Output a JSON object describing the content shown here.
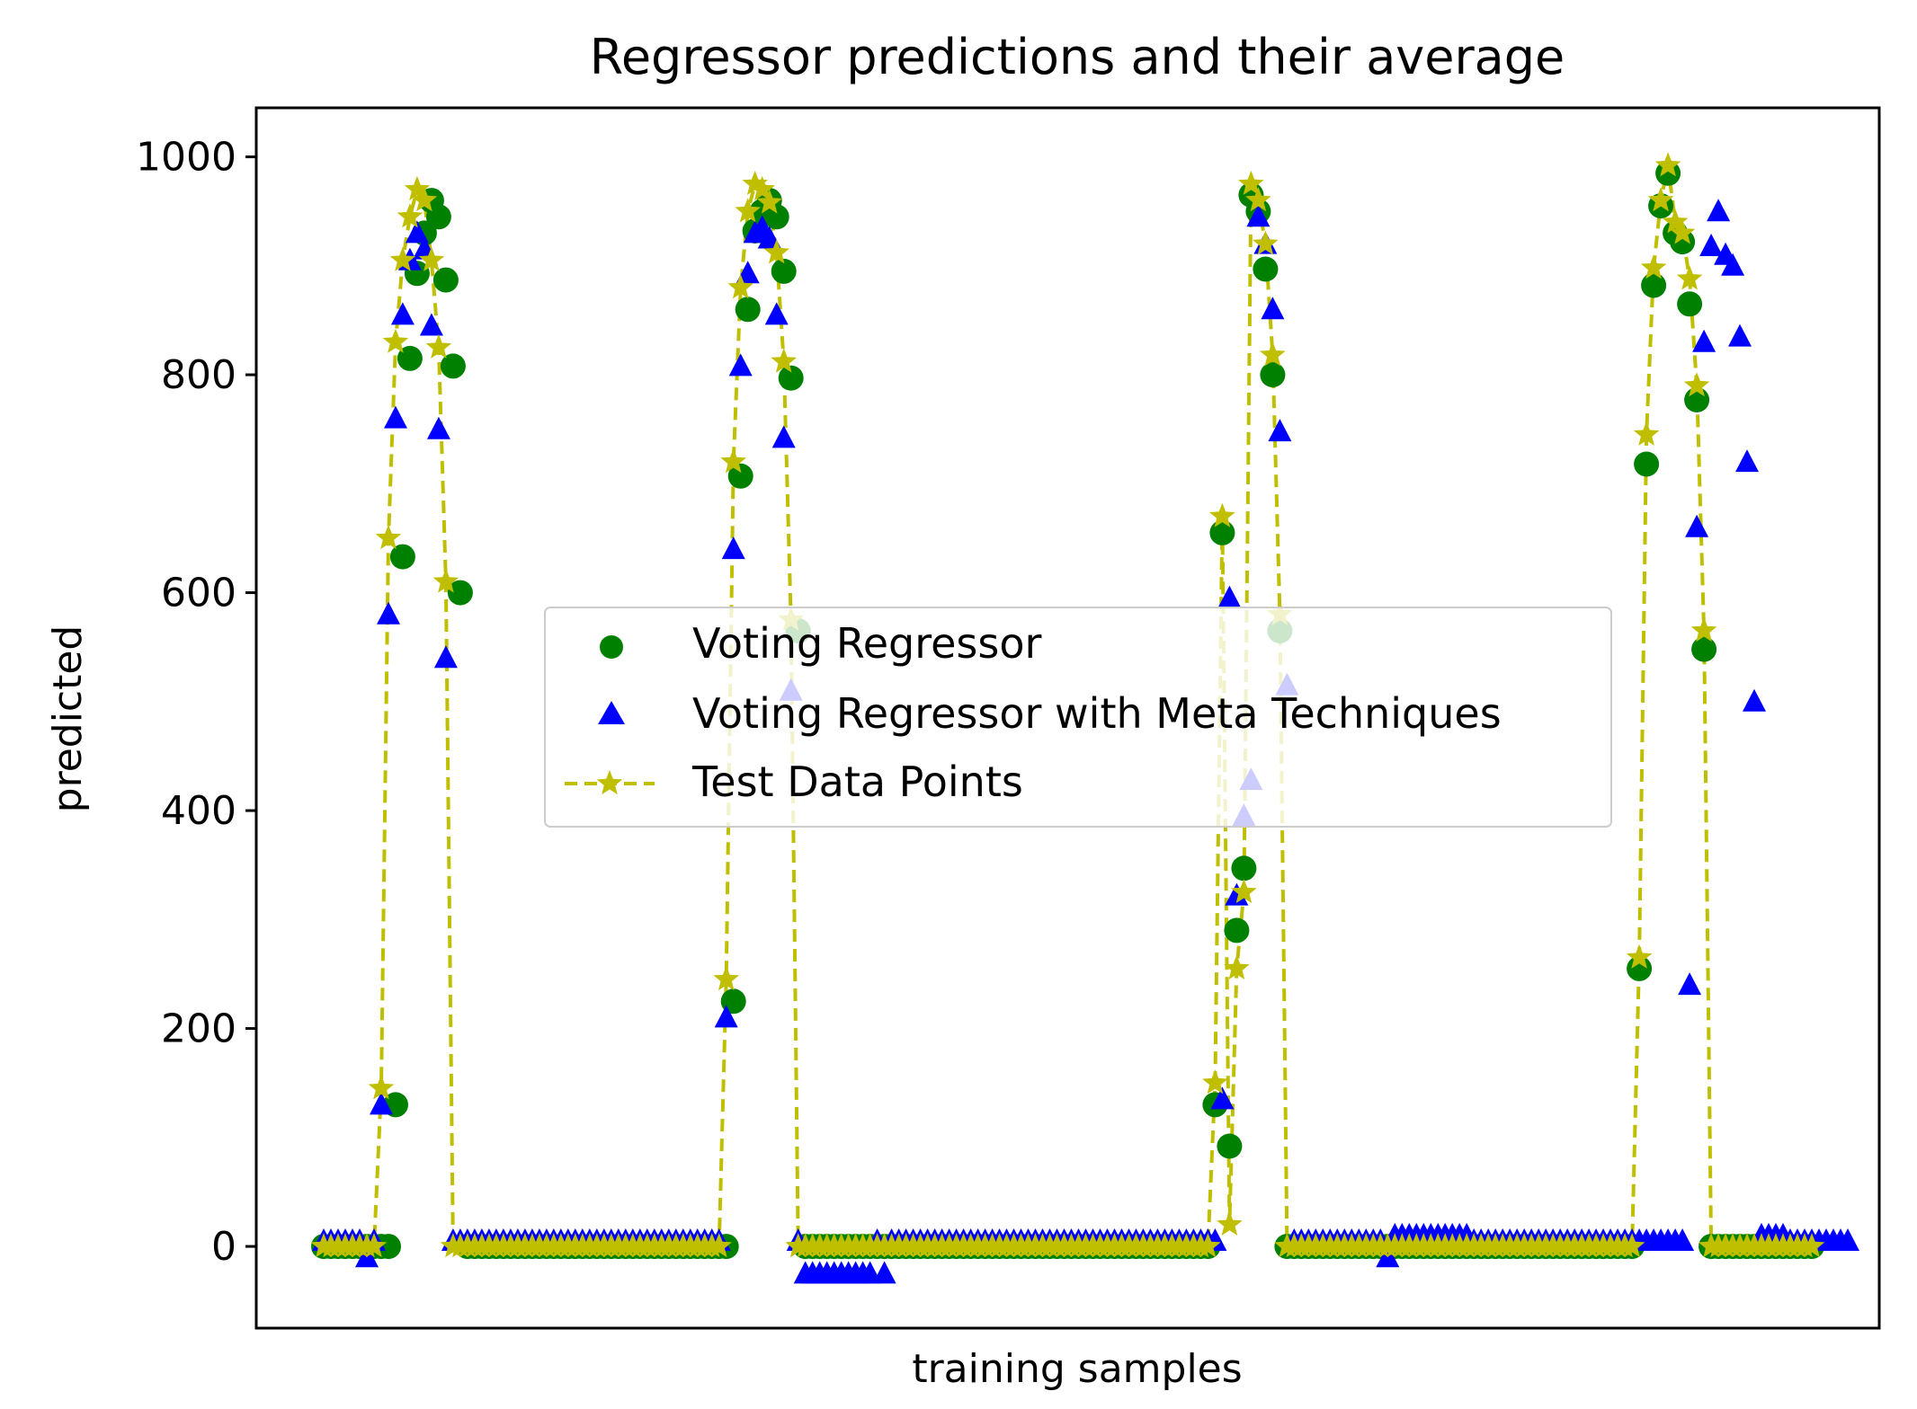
{
  "chart_data": {
    "type": "scatter",
    "title": "Regressor predictions and their average",
    "xlabel": "training samples",
    "ylabel": "predicted",
    "ylim": [
      -75,
      1045
    ],
    "yticks": [
      0,
      200,
      400,
      600,
      800,
      1000
    ],
    "xticks_shown": false,
    "legend_position": "center",
    "series": [
      {
        "name": "Voting Regressor",
        "marker": "circle",
        "color": "#008000",
        "values": [
          0,
          0,
          0,
          0,
          0,
          0,
          0,
          0,
          0,
          0,
          130,
          633,
          815,
          893,
          930,
          960,
          945,
          887,
          808,
          600,
          0,
          0,
          0,
          0,
          0,
          0,
          0,
          0,
          0,
          0,
          0,
          0,
          0,
          0,
          0,
          0,
          0,
          0,
          0,
          0,
          0,
          0,
          0,
          0,
          0,
          0,
          0,
          0,
          0,
          0,
          0,
          0,
          0,
          0,
          0,
          0,
          0,
          225,
          707,
          860,
          932,
          950,
          960,
          945,
          895,
          797,
          565,
          0,
          0,
          0,
          0,
          0,
          0,
          0,
          0,
          0,
          0,
          0,
          0,
          0,
          0,
          0,
          0,
          0,
          0,
          0,
          0,
          0,
          0,
          0,
          0,
          0,
          0,
          0,
          0,
          0,
          0,
          0,
          0,
          0,
          0,
          0,
          0,
          0,
          0,
          0,
          0,
          0,
          0,
          0,
          0,
          0,
          0,
          0,
          0,
          0,
          0,
          0,
          0,
          0,
          0,
          0,
          0,
          0,
          130,
          655,
          92,
          290,
          347,
          965,
          950,
          897,
          800,
          565,
          0,
          0,
          0,
          0,
          0,
          0,
          0,
          0,
          0,
          0,
          0,
          0,
          0,
          0,
          0,
          0,
          0,
          0,
          0,
          0,
          0,
          0,
          0,
          0,
          0,
          0,
          0,
          0,
          0,
          0,
          0,
          0,
          0,
          0,
          0,
          0,
          0,
          0,
          0,
          0,
          0,
          0,
          0,
          0,
          0,
          0,
          0,
          0,
          0,
          255,
          718,
          882,
          955,
          985,
          930,
          922,
          865,
          777,
          548,
          0,
          0,
          0,
          0,
          0,
          0,
          0,
          0,
          0,
          0,
          0,
          0,
          0,
          0,
          0
        ]
      },
      {
        "name": "Voting Regressor with Meta Techniques",
        "marker": "triangle",
        "color": "#0000ff",
        "values": [
          5,
          5,
          5,
          5,
          5,
          5,
          -10,
          5,
          130,
          580,
          760,
          855,
          905,
          930,
          915,
          845,
          750,
          540,
          5,
          5,
          5,
          5,
          5,
          5,
          5,
          5,
          5,
          5,
          5,
          5,
          5,
          5,
          5,
          5,
          5,
          5,
          5,
          5,
          5,
          5,
          5,
          5,
          5,
          5,
          5,
          5,
          5,
          5,
          5,
          5,
          5,
          5,
          5,
          5,
          5,
          5,
          210,
          640,
          808,
          893,
          930,
          935,
          925,
          855,
          742,
          510,
          5,
          -25,
          -25,
          -25,
          -25,
          -25,
          -25,
          -25,
          -25,
          -25,
          -25,
          5,
          -25,
          5,
          5,
          5,
          5,
          5,
          5,
          5,
          5,
          5,
          5,
          5,
          5,
          5,
          5,
          5,
          5,
          5,
          5,
          5,
          5,
          5,
          5,
          5,
          5,
          5,
          5,
          5,
          5,
          5,
          5,
          5,
          5,
          5,
          5,
          5,
          5,
          5,
          5,
          5,
          5,
          5,
          5,
          5,
          5,
          5,
          5,
          135,
          595,
          322,
          395,
          428,
          945,
          920,
          860,
          748,
          515,
          5,
          5,
          5,
          5,
          5,
          5,
          5,
          5,
          5,
          5,
          5,
          5,
          5,
          -10,
          10,
          10,
          10,
          10,
          10,
          10,
          10,
          10,
          10,
          10,
          10,
          5,
          5,
          5,
          5,
          5,
          5,
          5,
          5,
          5,
          5,
          5,
          5,
          5,
          5,
          5,
          5,
          5,
          5,
          5,
          5,
          5,
          5,
          5,
          5,
          5,
          5,
          5,
          5,
          5,
          5,
          240,
          660,
          830,
          918,
          950,
          910,
          900,
          835,
          720,
          500,
          10,
          10,
          10,
          10,
          5,
          5,
          5,
          5,
          5,
          5,
          5,
          5,
          5
        ]
      },
      {
        "name": "Test Data Points",
        "marker": "star",
        "style": "dashed-line",
        "color": "#bfbf00",
        "values": [
          0,
          0,
          0,
          0,
          0,
          0,
          0,
          0,
          145,
          650,
          830,
          905,
          945,
          970,
          960,
          905,
          825,
          610,
          0,
          0,
          0,
          0,
          0,
          0,
          0,
          0,
          0,
          0,
          0,
          0,
          0,
          0,
          0,
          0,
          0,
          0,
          0,
          0,
          0,
          0,
          0,
          0,
          0,
          0,
          0,
          0,
          0,
          0,
          0,
          0,
          0,
          0,
          0,
          0,
          0,
          0,
          245,
          720,
          880,
          950,
          975,
          970,
          958,
          912,
          812,
          575,
          0,
          0,
          0,
          0,
          0,
          0,
          0,
          0,
          0,
          0,
          0,
          0,
          0,
          0,
          0,
          0,
          0,
          0,
          0,
          0,
          0,
          0,
          0,
          0,
          0,
          0,
          0,
          0,
          0,
          0,
          0,
          0,
          0,
          0,
          0,
          0,
          0,
          0,
          0,
          0,
          0,
          0,
          0,
          0,
          0,
          0,
          0,
          0,
          0,
          0,
          0,
          0,
          0,
          0,
          0,
          0,
          0,
          0,
          150,
          670,
          20,
          255,
          325,
          975,
          960,
          920,
          818,
          580,
          0,
          0,
          0,
          0,
          0,
          0,
          0,
          0,
          0,
          0,
          0,
          0,
          0,
          0,
          0,
          0,
          0,
          0,
          0,
          0,
          0,
          0,
          0,
          0,
          0,
          0,
          0,
          0,
          0,
          0,
          0,
          0,
          0,
          0,
          0,
          0,
          0,
          0,
          0,
          0,
          0,
          0,
          0,
          0,
          0,
          0,
          0,
          0,
          0,
          265,
          745,
          898,
          960,
          992,
          940,
          930,
          888,
          790,
          565,
          0,
          0,
          0,
          0,
          0,
          0,
          0,
          0,
          0,
          0,
          0,
          0,
          0,
          0,
          0
        ]
      }
    ]
  }
}
